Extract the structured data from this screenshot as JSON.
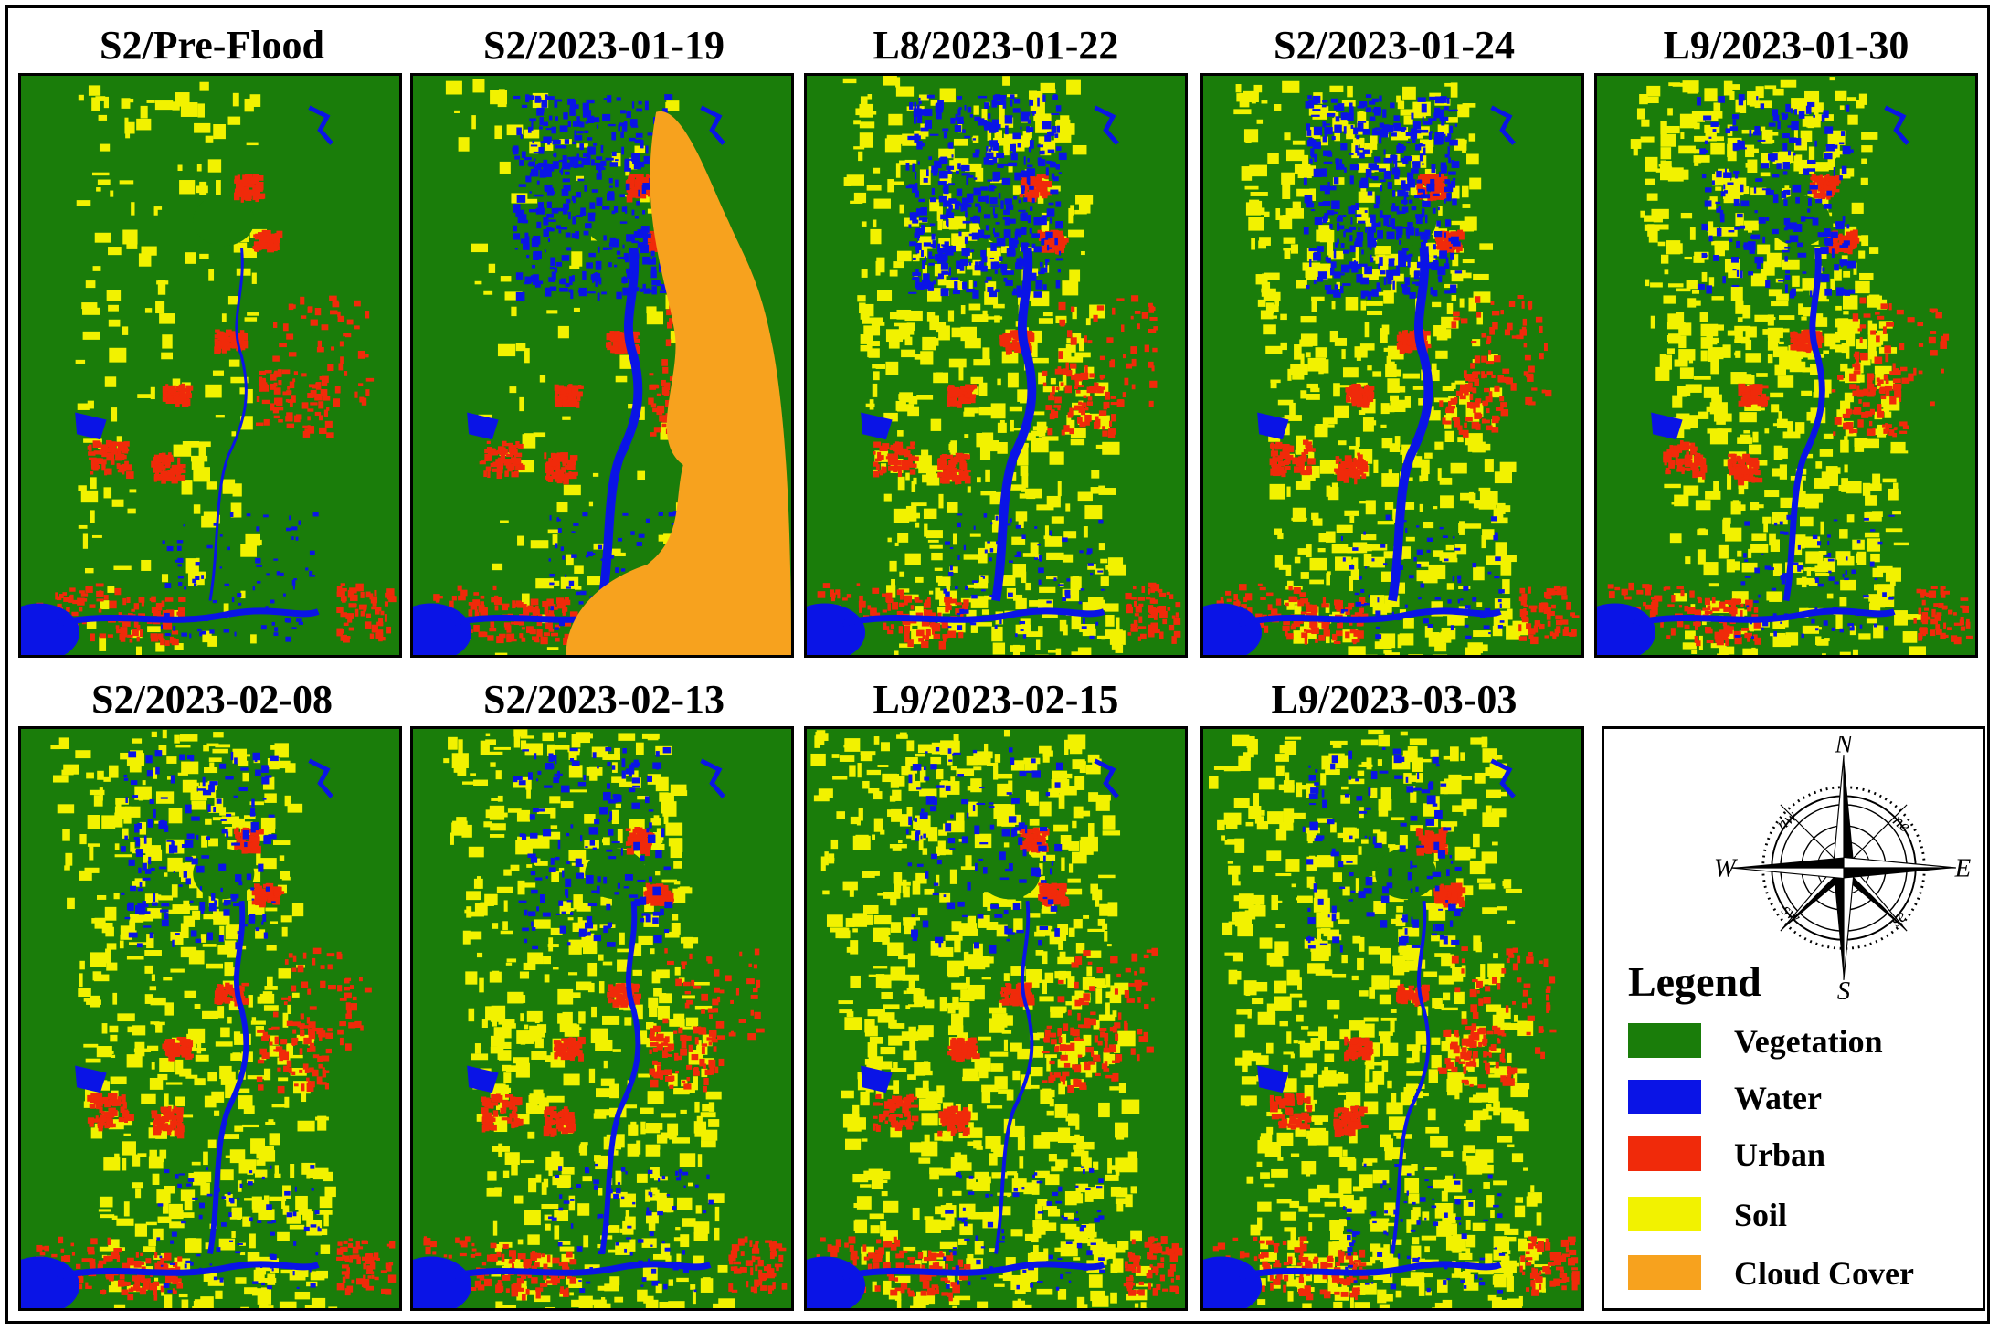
{
  "panels": [
    {
      "title": "S2/Pre-Flood",
      "scene": "pre"
    },
    {
      "title": "S2/2023-01-19",
      "scene": "cloud"
    },
    {
      "title": "L8/2023-01-22",
      "scene": "flood"
    },
    {
      "title": "S2/2023-01-24",
      "scene": "flood"
    },
    {
      "title": "L9/2023-01-30",
      "scene": "flood2"
    },
    {
      "title": "S2/2023-02-08",
      "scene": "recede"
    },
    {
      "title": "S2/2023-02-13",
      "scene": "recede"
    },
    {
      "title": "L9/2023-02-15",
      "scene": "dry"
    },
    {
      "title": "L9/2023-03-03",
      "scene": "dry"
    }
  ],
  "legend": {
    "title": "Legend",
    "items": [
      {
        "label": "Vegetation",
        "color": "#1a7d0a"
      },
      {
        "label": "Water",
        "color": "#0a14e6"
      },
      {
        "label": "Urban",
        "color": "#f02a0a"
      },
      {
        "label": "Soil",
        "color": "#f2f200"
      },
      {
        "label": "Cloud Cover",
        "color": "#f7a21e"
      }
    ]
  },
  "compass": {
    "n": "N",
    "s": "S",
    "e": "E",
    "w": "W",
    "ne": "ne",
    "nw": "nw",
    "se": "se",
    "sw": "sw"
  }
}
